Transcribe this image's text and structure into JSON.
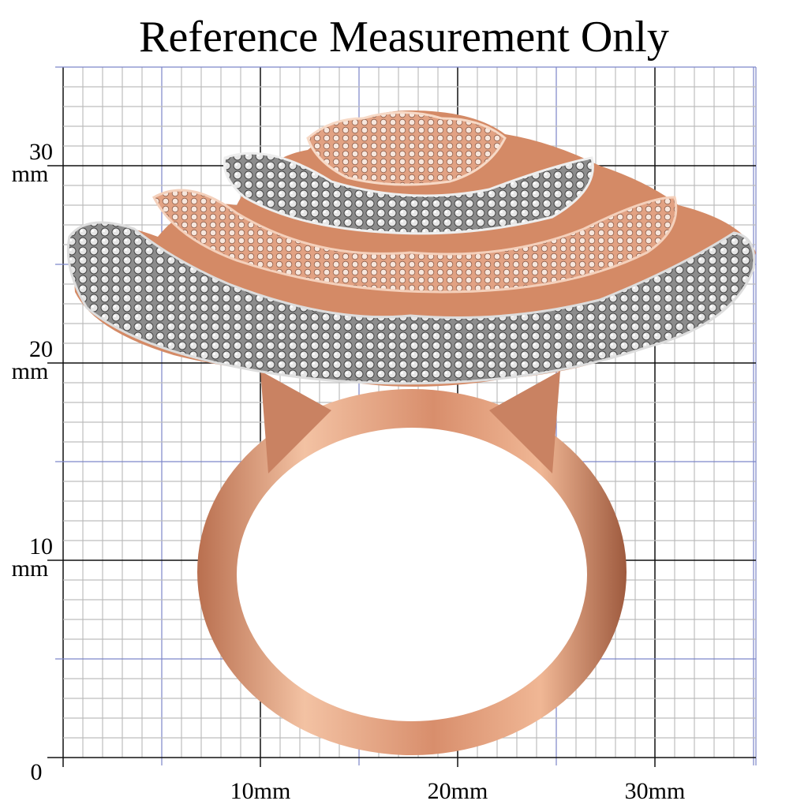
{
  "header": {
    "title": "Reference Measurement Only"
  },
  "axes": {
    "y_labels": [
      {
        "number": "30",
        "unit": "mm"
      },
      {
        "number": "20",
        "unit": "mm"
      },
      {
        "number": "10",
        "unit": "mm"
      }
    ],
    "origin": "0",
    "x_labels": [
      "10mm",
      "20mm",
      "30mm"
    ]
  }
}
